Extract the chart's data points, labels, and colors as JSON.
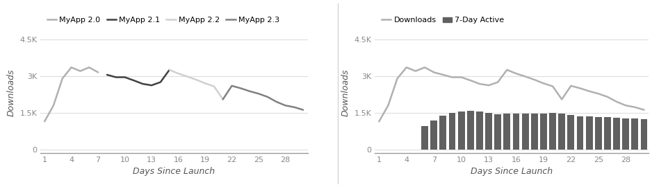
{
  "left": {
    "xlabel": "Days Since Launch",
    "ylabel": "Downloads",
    "yticks": [
      0,
      1500,
      3000,
      4500
    ],
    "ytick_labels": [
      "0",
      "1.5K",
      "3K",
      "4.5K"
    ],
    "xticks": [
      1,
      4,
      7,
      10,
      13,
      16,
      19,
      22,
      25,
      28
    ],
    "ylim": [
      -150,
      4800
    ],
    "xlim": [
      0.5,
      30.5
    ],
    "lines": [
      {
        "label": "MyApp 2.0",
        "color": "#b0b0b0",
        "x": [
          1,
          2,
          3,
          4,
          5,
          6,
          7
        ],
        "y": [
          1150,
          1800,
          2900,
          3350,
          3200,
          3350,
          3150
        ]
      },
      {
        "label": "MyApp 2.1",
        "color": "#404040",
        "x": [
          8,
          9,
          10,
          11,
          12,
          13,
          14,
          15
        ],
        "y": [
          3050,
          2950,
          2950,
          2820,
          2680,
          2620,
          2750,
          3250
        ]
      },
      {
        "label": "MyApp 2.2",
        "color": "#d0d0d0",
        "x": [
          15,
          16,
          17,
          18,
          19,
          20,
          21
        ],
        "y": [
          3250,
          3100,
          2980,
          2850,
          2700,
          2580,
          2050
        ]
      },
      {
        "label": "MyApp 2.3",
        "color": "#808080",
        "x": [
          21,
          22,
          23,
          24,
          25,
          26,
          27,
          28,
          29,
          30
        ],
        "y": [
          2050,
          2600,
          2500,
          2380,
          2280,
          2150,
          1950,
          1800,
          1730,
          1620
        ]
      }
    ]
  },
  "right": {
    "xlabel": "Days Since Launch",
    "ylabel": "Downloads",
    "yticks": [
      0,
      1500,
      3000,
      4500
    ],
    "ytick_labels": [
      "0",
      "1.5K",
      "3K",
      "4.5K"
    ],
    "xticks": [
      1,
      4,
      7,
      10,
      13,
      16,
      19,
      22,
      25,
      28
    ],
    "ylim": [
      -150,
      4800
    ],
    "xlim": [
      0.5,
      30.5
    ],
    "downloads_label": "Downloads",
    "downloads_color": "#b0b0b0",
    "downloads_x": [
      1,
      2,
      3,
      4,
      5,
      6,
      7,
      8,
      9,
      10,
      11,
      12,
      13,
      14,
      15,
      16,
      17,
      18,
      19,
      20,
      21,
      22,
      23,
      24,
      25,
      26,
      27,
      28,
      29,
      30
    ],
    "downloads_y": [
      1150,
      1800,
      2900,
      3350,
      3200,
      3350,
      3150,
      3050,
      2950,
      2950,
      2820,
      2680,
      2620,
      2750,
      3250,
      3100,
      2980,
      2850,
      2700,
      2580,
      2050,
      2600,
      2500,
      2380,
      2280,
      2150,
      1950,
      1800,
      1730,
      1620
    ],
    "bar_label": "7-Day Active",
    "bar_color": "#606060",
    "bar_x": [
      6,
      7,
      8,
      9,
      10,
      11,
      12,
      13,
      14,
      15,
      16,
      17,
      18,
      19,
      20,
      21,
      22,
      23,
      24,
      25,
      26,
      27,
      28,
      29,
      30
    ],
    "bar_y": [
      950,
      1200,
      1380,
      1490,
      1560,
      1590,
      1540,
      1500,
      1450,
      1460,
      1480,
      1470,
      1460,
      1470,
      1500,
      1470,
      1400,
      1370,
      1360,
      1340,
      1320,
      1300,
      1280,
      1260,
      1250
    ]
  },
  "bg_color": "#ffffff",
  "grid_color": "#dddddd",
  "line_width": 1.8,
  "legend_fontsize": 8.0,
  "axis_fontsize": 8,
  "label_fontsize": 9,
  "tick_color": "#888888",
  "axis_label_color": "#555555",
  "divider_color": "#cccccc"
}
